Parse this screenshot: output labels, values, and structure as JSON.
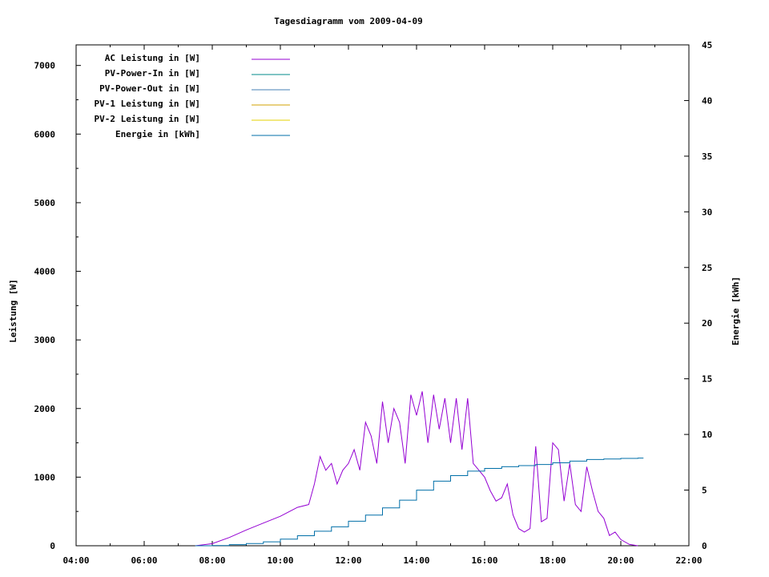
{
  "chart_data": {
    "type": "line",
    "title": "Tagesdiagramm vom 2009-04-09",
    "ylabel": "Leistung [W]",
    "y2label": "Energie [kWh]",
    "xlim": [
      "04:00",
      "22:00"
    ],
    "ylim": [
      0,
      7300
    ],
    "y2lim": [
      0,
      45
    ],
    "xticks": [
      "04:00",
      "06:00",
      "08:00",
      "10:00",
      "12:00",
      "14:00",
      "16:00",
      "18:00",
      "20:00",
      "22:00"
    ],
    "yticks": [
      "0",
      "1000",
      "2000",
      "3000",
      "4000",
      "5000",
      "6000",
      "7000"
    ],
    "y2ticks": [
      "0",
      "5",
      "10",
      "15",
      "20",
      "25",
      "30",
      "35",
      "40",
      "45"
    ],
    "legend_position": "top-left",
    "grid": false,
    "series": [
      {
        "name": "AC Leistung in [W]",
        "axis": "left",
        "color": "#9400d3",
        "x": [
          "07:30",
          "08:00",
          "08:30",
          "09:00",
          "09:30",
          "10:00",
          "10:30",
          "10:50",
          "11:00",
          "11:10",
          "11:20",
          "11:30",
          "11:40",
          "11:50",
          "12:00",
          "12:10",
          "12:20",
          "12:30",
          "12:40",
          "12:50",
          "13:00",
          "13:10",
          "13:20",
          "13:30",
          "13:40",
          "13:50",
          "14:00",
          "14:10",
          "14:20",
          "14:30",
          "14:40",
          "14:50",
          "15:00",
          "15:10",
          "15:20",
          "15:30",
          "15:40",
          "15:50",
          "16:00",
          "16:10",
          "16:20",
          "16:30",
          "16:40",
          "16:50",
          "17:00",
          "17:10",
          "17:20",
          "17:30",
          "17:40",
          "17:50",
          "18:00",
          "18:10",
          "18:20",
          "18:30",
          "18:40",
          "18:50",
          "19:00",
          "19:10",
          "19:20",
          "19:30",
          "19:40",
          "19:50",
          "20:00",
          "20:15",
          "20:30"
        ],
        "values": [
          0,
          30,
          120,
          230,
          330,
          430,
          560,
          600,
          900,
          1300,
          1100,
          1200,
          900,
          1100,
          1200,
          1400,
          1100,
          1800,
          1600,
          1200,
          2100,
          1500,
          2000,
          1800,
          1200,
          2200,
          1900,
          2250,
          1500,
          2200,
          1700,
          2150,
          1500,
          2150,
          1400,
          2150,
          1200,
          1100,
          1000,
          800,
          650,
          700,
          900,
          450,
          250,
          200,
          250,
          1450,
          350,
          400,
          1500,
          1400,
          650,
          1200,
          600,
          500,
          1150,
          800,
          500,
          400,
          150,
          200,
          90,
          20,
          0
        ]
      },
      {
        "name": "PV-Power-In in [W]",
        "axis": "left",
        "color": "#008b8b",
        "x": [],
        "values": []
      },
      {
        "name": "PV-Power-Out in [W]",
        "axis": "left",
        "color": "#4682b4",
        "x": [],
        "values": []
      },
      {
        "name": "PV-1 Leistung in [W]",
        "axis": "left",
        "color": "#d2a000",
        "x": [],
        "values": []
      },
      {
        "name": "PV-2 Leistung in [W]",
        "axis": "left",
        "color": "#e6d000",
        "x": [],
        "values": []
      },
      {
        "name": "Energie in [kWh]",
        "axis": "right",
        "color": "#006fa8",
        "x": [
          "07:30",
          "08:00",
          "08:30",
          "09:00",
          "09:30",
          "10:00",
          "10:30",
          "11:00",
          "11:30",
          "12:00",
          "12:30",
          "13:00",
          "13:30",
          "14:00",
          "14:30",
          "15:00",
          "15:30",
          "16:00",
          "16:30",
          "17:00",
          "17:30",
          "18:00",
          "18:30",
          "19:00",
          "19:30",
          "20:00",
          "20:30",
          "20:40"
        ],
        "values": [
          0,
          0.02,
          0.1,
          0.2,
          0.35,
          0.6,
          0.9,
          1.3,
          1.7,
          2.2,
          2.75,
          3.4,
          4.1,
          5.0,
          5.8,
          6.3,
          6.7,
          6.95,
          7.1,
          7.2,
          7.3,
          7.45,
          7.6,
          7.75,
          7.8,
          7.85,
          7.88,
          7.88
        ]
      }
    ]
  }
}
